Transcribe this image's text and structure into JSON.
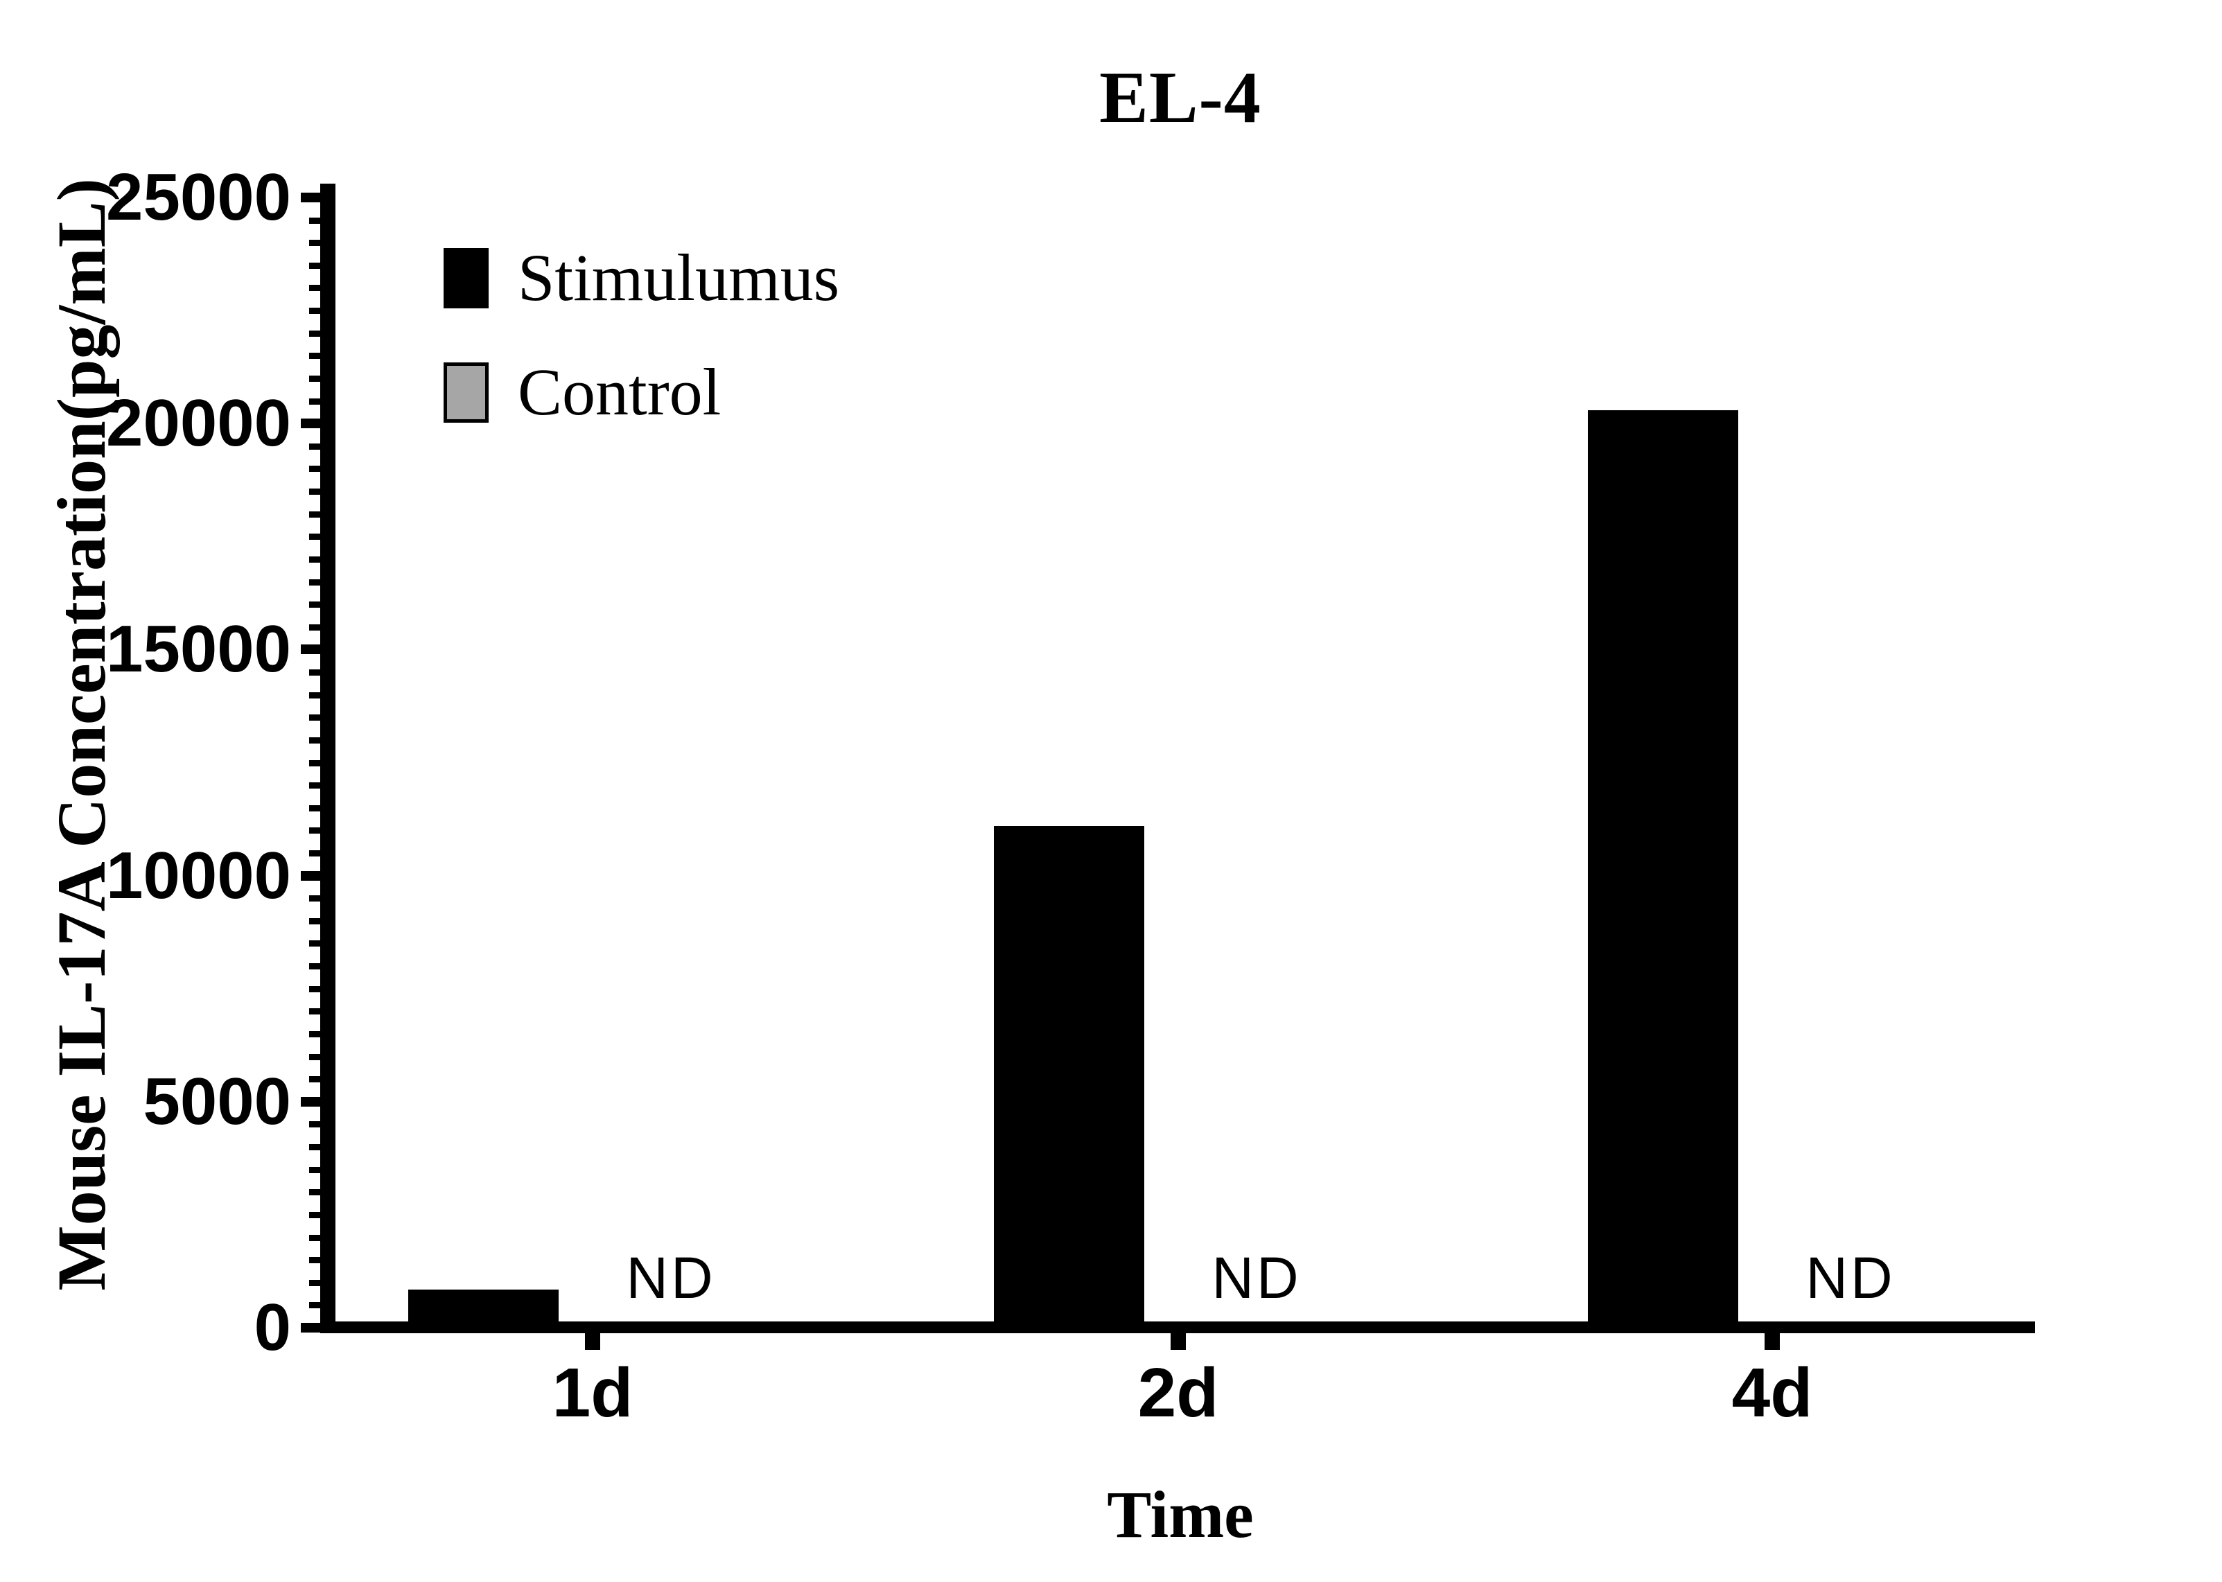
{
  "chart": {
    "title": "EL-4",
    "xlabel": "Time",
    "ylabel": "Mouse IL-17A Concentration(pg/mL)",
    "type": "bar",
    "categories": [
      "1d",
      "2d",
      "4d"
    ],
    "series": [
      {
        "name": "Stimulumus",
        "color": "#000000",
        "values": [
          850,
          11100,
          20300
        ]
      },
      {
        "name": "Control",
        "color": "#a6a6a6",
        "values": [
          null,
          null,
          null
        ],
        "value_labels": [
          "ND",
          "ND",
          "ND"
        ]
      }
    ],
    "ylim": [
      0,
      25000
    ],
    "y_major_step": 5000,
    "y_minor_step": 500,
    "y_tick_labels": [
      "0",
      "5000",
      "10000",
      "15000",
      "20000",
      "25000"
    ],
    "legend_position": "top-left-inside",
    "grid": false,
    "nd_text": "ND"
  },
  "chart_data": {
    "type": "bar",
    "title": "EL-4",
    "xlabel": "Time",
    "ylabel": "Mouse IL-17A Concentration(pg/mL)",
    "categories": [
      "1d",
      "2d",
      "4d"
    ],
    "series": [
      {
        "name": "Stimulumus",
        "values": [
          850,
          11100,
          20300
        ]
      },
      {
        "name": "Control",
        "values": [
          "ND",
          "ND",
          "ND"
        ]
      }
    ],
    "ylim": [
      0,
      25000
    ],
    "legend": [
      "Stimulumus",
      "Control"
    ],
    "legend_position": "top-left-inside",
    "grid": false
  }
}
